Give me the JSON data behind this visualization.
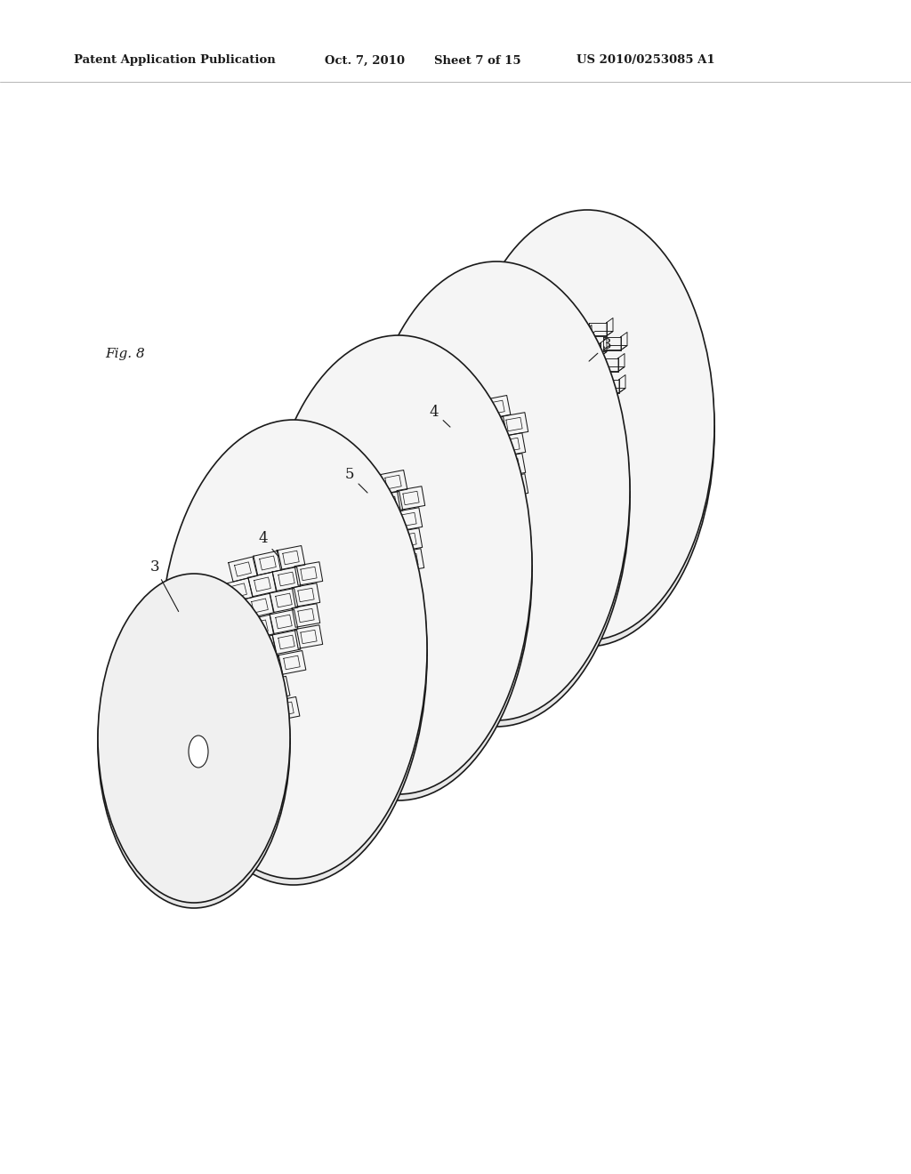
{
  "background_color": "#ffffff",
  "line_color": "#1a1a1a",
  "header_text": "Patent Application Publication",
  "header_date": "Oct. 7, 2010",
  "header_sheet": "Sheet 7 of 15",
  "header_patent": "US 2010/0253085 A1",
  "fig_label": "Fig. 8",
  "disc_lw": 1.2,
  "slot_lw": 0.75,
  "label_fontsize": 12,
  "header_fontsize": 9.5
}
